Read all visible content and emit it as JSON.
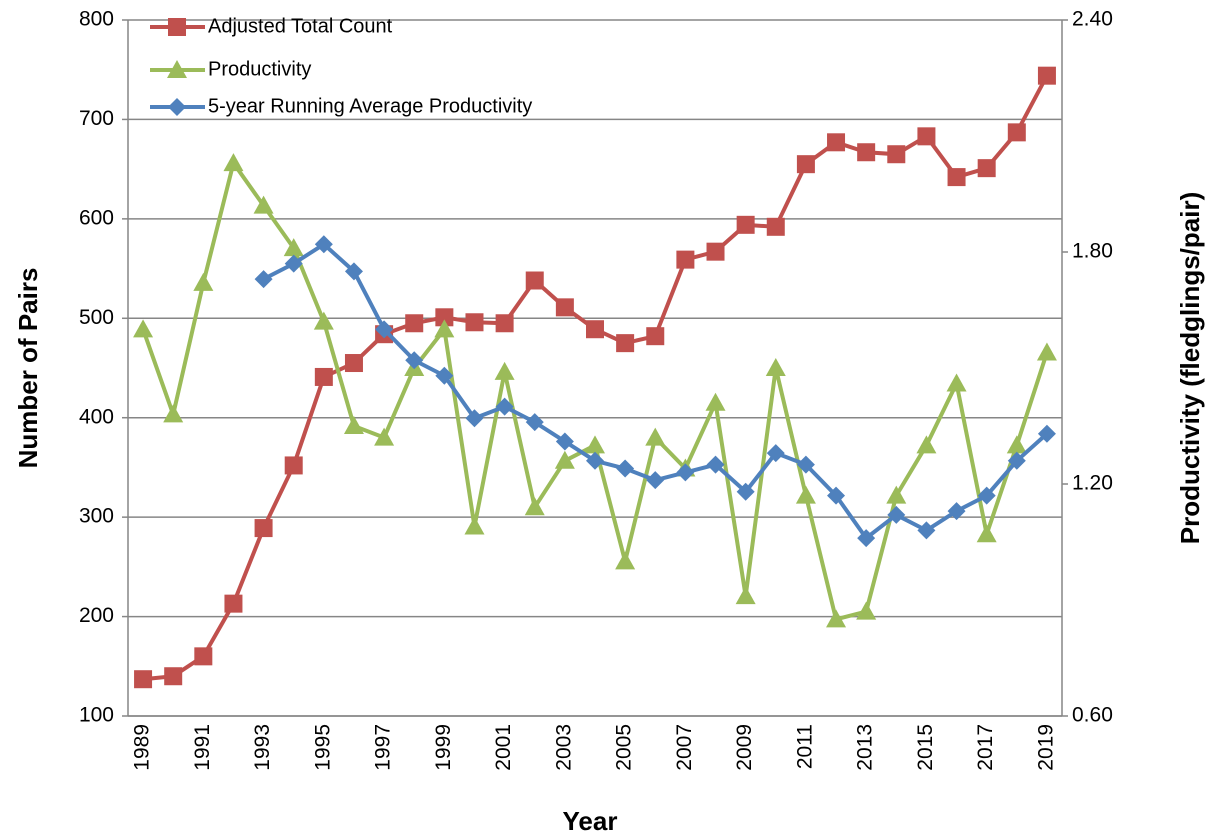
{
  "chart_data": {
    "type": "line",
    "xlabel": "Year",
    "ylabel": "Number of Pairs",
    "y2label": "Productivity (fledglings/pair)",
    "categories": [
      "1989",
      null,
      "1991",
      null,
      "1993",
      null,
      "1995",
      null,
      "1997",
      null,
      "1999",
      null,
      "2001",
      null,
      "2003",
      null,
      "2005",
      null,
      "2007",
      null,
      "2009",
      null,
      "2011",
      null,
      "2013",
      null,
      "2015",
      null,
      "2017",
      null,
      "2019"
    ],
    "ylim": [
      100,
      800
    ],
    "yticks": [
      100,
      200,
      300,
      400,
      500,
      600,
      700,
      800
    ],
    "y2lim": [
      0.6,
      2.4
    ],
    "y2ticks": [
      {
        "value": 0.6,
        "label": "0.60"
      },
      {
        "value": 1.2,
        "label": "1.20"
      },
      {
        "value": 1.8,
        "label": "1.80"
      },
      {
        "value": 2.4,
        "label": "2.40"
      }
    ],
    "grid": true,
    "legend": "upper left",
    "series": [
      {
        "name": "Adjusted Total Count",
        "color": "#c0504d",
        "marker": "square",
        "values": [
          137,
          140,
          160,
          213,
          289,
          352,
          441,
          455,
          484,
          495,
          501,
          496,
          495,
          538,
          511,
          489,
          475,
          482,
          559,
          567,
          594,
          592,
          655,
          677,
          667,
          665,
          683,
          642,
          651,
          687,
          744
        ]
      },
      {
        "name": "Productivity",
        "color": "#9bbb59",
        "marker": "triangle",
        "axis": "y2",
        "values": [
          1.6,
          1.38,
          1.72,
          2.03,
          1.92,
          1.81,
          1.62,
          1.35,
          1.32,
          1.5,
          1.6,
          1.09,
          1.49,
          1.14,
          1.26,
          1.3,
          1.0,
          1.32,
          1.24,
          1.41,
          0.91,
          1.5,
          1.17,
          0.85,
          0.87,
          1.17,
          1.3,
          1.46,
          1.07,
          1.3,
          1.54
        ]
      },
      {
        "name": "5-year Running Average Productivity",
        "color": "#4f81bd",
        "marker": "diamond",
        "axis": "y2",
        "values": [
          null,
          null,
          null,
          null,
          1.73,
          1.77,
          1.82,
          1.75,
          1.6,
          1.52,
          1.48,
          1.37,
          1.4,
          1.36,
          1.31,
          1.26,
          1.24,
          1.21,
          1.23,
          1.25,
          1.18,
          1.28,
          1.25,
          1.17,
          1.06,
          1.12,
          1.08,
          1.13,
          1.17,
          1.26,
          1.33
        ]
      }
    ]
  }
}
